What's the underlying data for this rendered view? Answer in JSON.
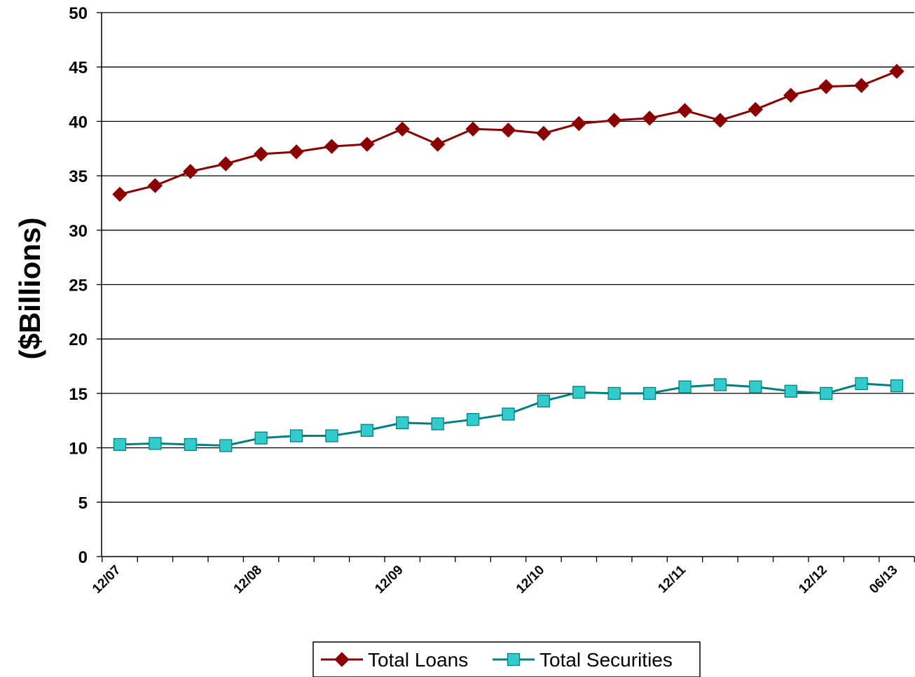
{
  "chart_data": {
    "type": "line",
    "ylabel": "($Billions)",
    "xlabel": "",
    "ylim": [
      0,
      50
    ],
    "y_ticks": [
      "0",
      "5",
      "10",
      "15",
      "20",
      "25",
      "30",
      "35",
      "40",
      "45",
      "50"
    ],
    "x_tick_labels": [
      {
        "label": "12/07",
        "index": 0
      },
      {
        "label": "12/08",
        "index": 4
      },
      {
        "label": "12/09",
        "index": 8
      },
      {
        "label": "12/10",
        "index": 12
      },
      {
        "label": "12/11",
        "index": 16
      },
      {
        "label": "12/12",
        "index": 20
      },
      {
        "label": "06/13",
        "index": 22
      }
    ],
    "x": [
      "12/07",
      "03/08",
      "06/08",
      "09/08",
      "12/08",
      "03/09",
      "06/09",
      "09/09",
      "12/09",
      "03/10",
      "06/10",
      "09/10",
      "12/10",
      "03/11",
      "06/11",
      "09/11",
      "12/11",
      "03/12",
      "06/12",
      "09/12",
      "12/12",
      "03/13",
      "06/13"
    ],
    "grid": "horizontal",
    "legend_position": "bottom",
    "series": [
      {
        "name": "Total Loans",
        "color": "#8B0000",
        "marker": "diamond",
        "values": [
          33.3,
          34.1,
          35.4,
          36.1,
          37.0,
          37.2,
          37.7,
          37.9,
          39.3,
          37.9,
          39.3,
          39.2,
          38.9,
          39.8,
          40.1,
          40.3,
          41.0,
          40.1,
          41.1,
          42.4,
          43.2,
          43.3,
          44.6
        ]
      },
      {
        "name": "Total Securities",
        "color": "#008080",
        "marker_fill": "#33CCCC",
        "marker": "square",
        "values": [
          10.3,
          10.4,
          10.3,
          10.2,
          10.9,
          11.1,
          11.1,
          11.6,
          12.3,
          12.2,
          12.6,
          13.1,
          14.3,
          15.1,
          15.0,
          15.0,
          15.6,
          15.8,
          15.6,
          15.2,
          15.0,
          15.9,
          15.7
        ]
      }
    ]
  }
}
